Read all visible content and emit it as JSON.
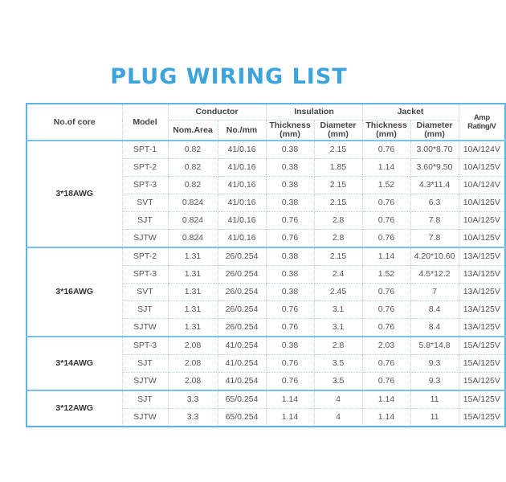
{
  "title": "PLUG WIRING LIST",
  "colors": {
    "title": "#3da3dd",
    "border": "#5bb5e6"
  },
  "headers": {
    "core": "No.of core",
    "model": "Model",
    "conductor": "Conductor",
    "insulation": "Insulation",
    "jacket": "Jacket",
    "amp": "Amp Rating/V",
    "nom_area": "Nom.Area",
    "no_mm": "No./mm",
    "ins_thickness": "Thickness (mm)",
    "ins_diameter": "Diameter (mm)",
    "jac_thickness": "Thickness (mm)",
    "jac_diameter": "Diameter (mm)"
  },
  "groups": [
    {
      "core": "3*18AWG",
      "rows": [
        [
          "SPT-1",
          "0.82",
          "41/0.16",
          "0.38",
          "2.15",
          "0.76",
          "3.00*8.70",
          "10A/124V"
        ],
        [
          "SPT-2",
          "0.82",
          "41/0.16",
          "0.38",
          "1.85",
          "1.14",
          "3.60*9.50",
          "10A/125V"
        ],
        [
          "SPT-3",
          "0.82",
          "41/0.16",
          "0.38",
          "2.15",
          "1.52",
          "4.3*11.4",
          "10A/124V"
        ],
        [
          "SVT",
          "0.824",
          "41/0.16",
          "0.38",
          "2.15",
          "0.76",
          "6.3",
          "10A/125V"
        ],
        [
          "SJT",
          "0.824",
          "41/0.16",
          "0.76",
          "2.8",
          "0.76",
          "7.8",
          "10A/125V"
        ],
        [
          "SJTW",
          "0.824",
          "41/0.16",
          "0.76",
          "2.8",
          "0.76",
          "7.8",
          "10A/125V"
        ]
      ]
    },
    {
      "core": "3*16AWG",
      "rows": [
        [
          "SPT-2",
          "1.31",
          "26/0.254",
          "0.38",
          "2.15",
          "1.14",
          "4.20*10.60",
          "13A/125V"
        ],
        [
          "SPT-3",
          "1.31",
          "26/0.254",
          "0.38",
          "2.4",
          "1.52",
          "4.5*12.2",
          "13A/125V"
        ],
        [
          "SVT",
          "1.31",
          "26/0.254",
          "0.38",
          "2.45",
          "0.76",
          "7",
          "13A/125V"
        ],
        [
          "SJT",
          "1.31",
          "26/0.254",
          "0.76",
          "3.1",
          "0.76",
          "8.4",
          "13A/125V"
        ],
        [
          "SJTW",
          "1.31",
          "26/0.254",
          "0.76",
          "3.1",
          "0.76",
          "8.4",
          "13A/125V"
        ]
      ]
    },
    {
      "core": "3*14AWG",
      "rows": [
        [
          "SPT-3",
          "2.08",
          "41/0.254",
          "0.38",
          "2.8",
          "2.03",
          "5.8*14.8",
          "15A/125V"
        ],
        [
          "SJT",
          "2.08",
          "41/0.254",
          "0.76",
          "3.5",
          "0.76",
          "9.3",
          "15A/125V"
        ],
        [
          "SJTW",
          "2.08",
          "41/0.254",
          "0.76",
          "3.5",
          "0.76",
          "9.3",
          "15A/125V"
        ]
      ]
    },
    {
      "core": "3*12AWG",
      "rows": [
        [
          "SJT",
          "3.3",
          "65/0.254",
          "1.14",
          "4",
          "1.14",
          "11",
          "15A/125V"
        ],
        [
          "SJTW",
          "3.3",
          "65/0.254",
          "1.14",
          "4",
          "1.14",
          "11",
          "15A/125V"
        ]
      ]
    }
  ]
}
